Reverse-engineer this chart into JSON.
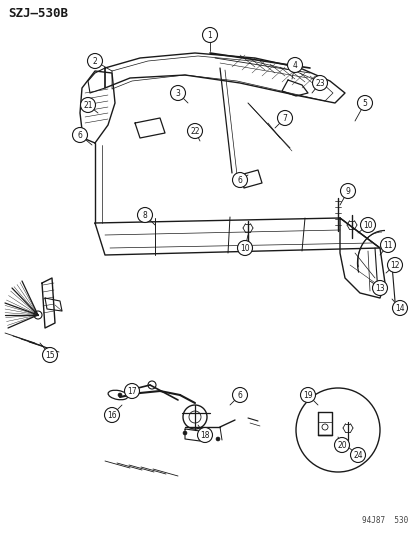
{
  "title_top_left": "SZJ–530B",
  "bottom_right_text": "94J87  530",
  "bg_color": "#ffffff",
  "line_color": "#1a1a1a",
  "fig_width": 4.14,
  "fig_height": 5.33,
  "dpi": 100
}
